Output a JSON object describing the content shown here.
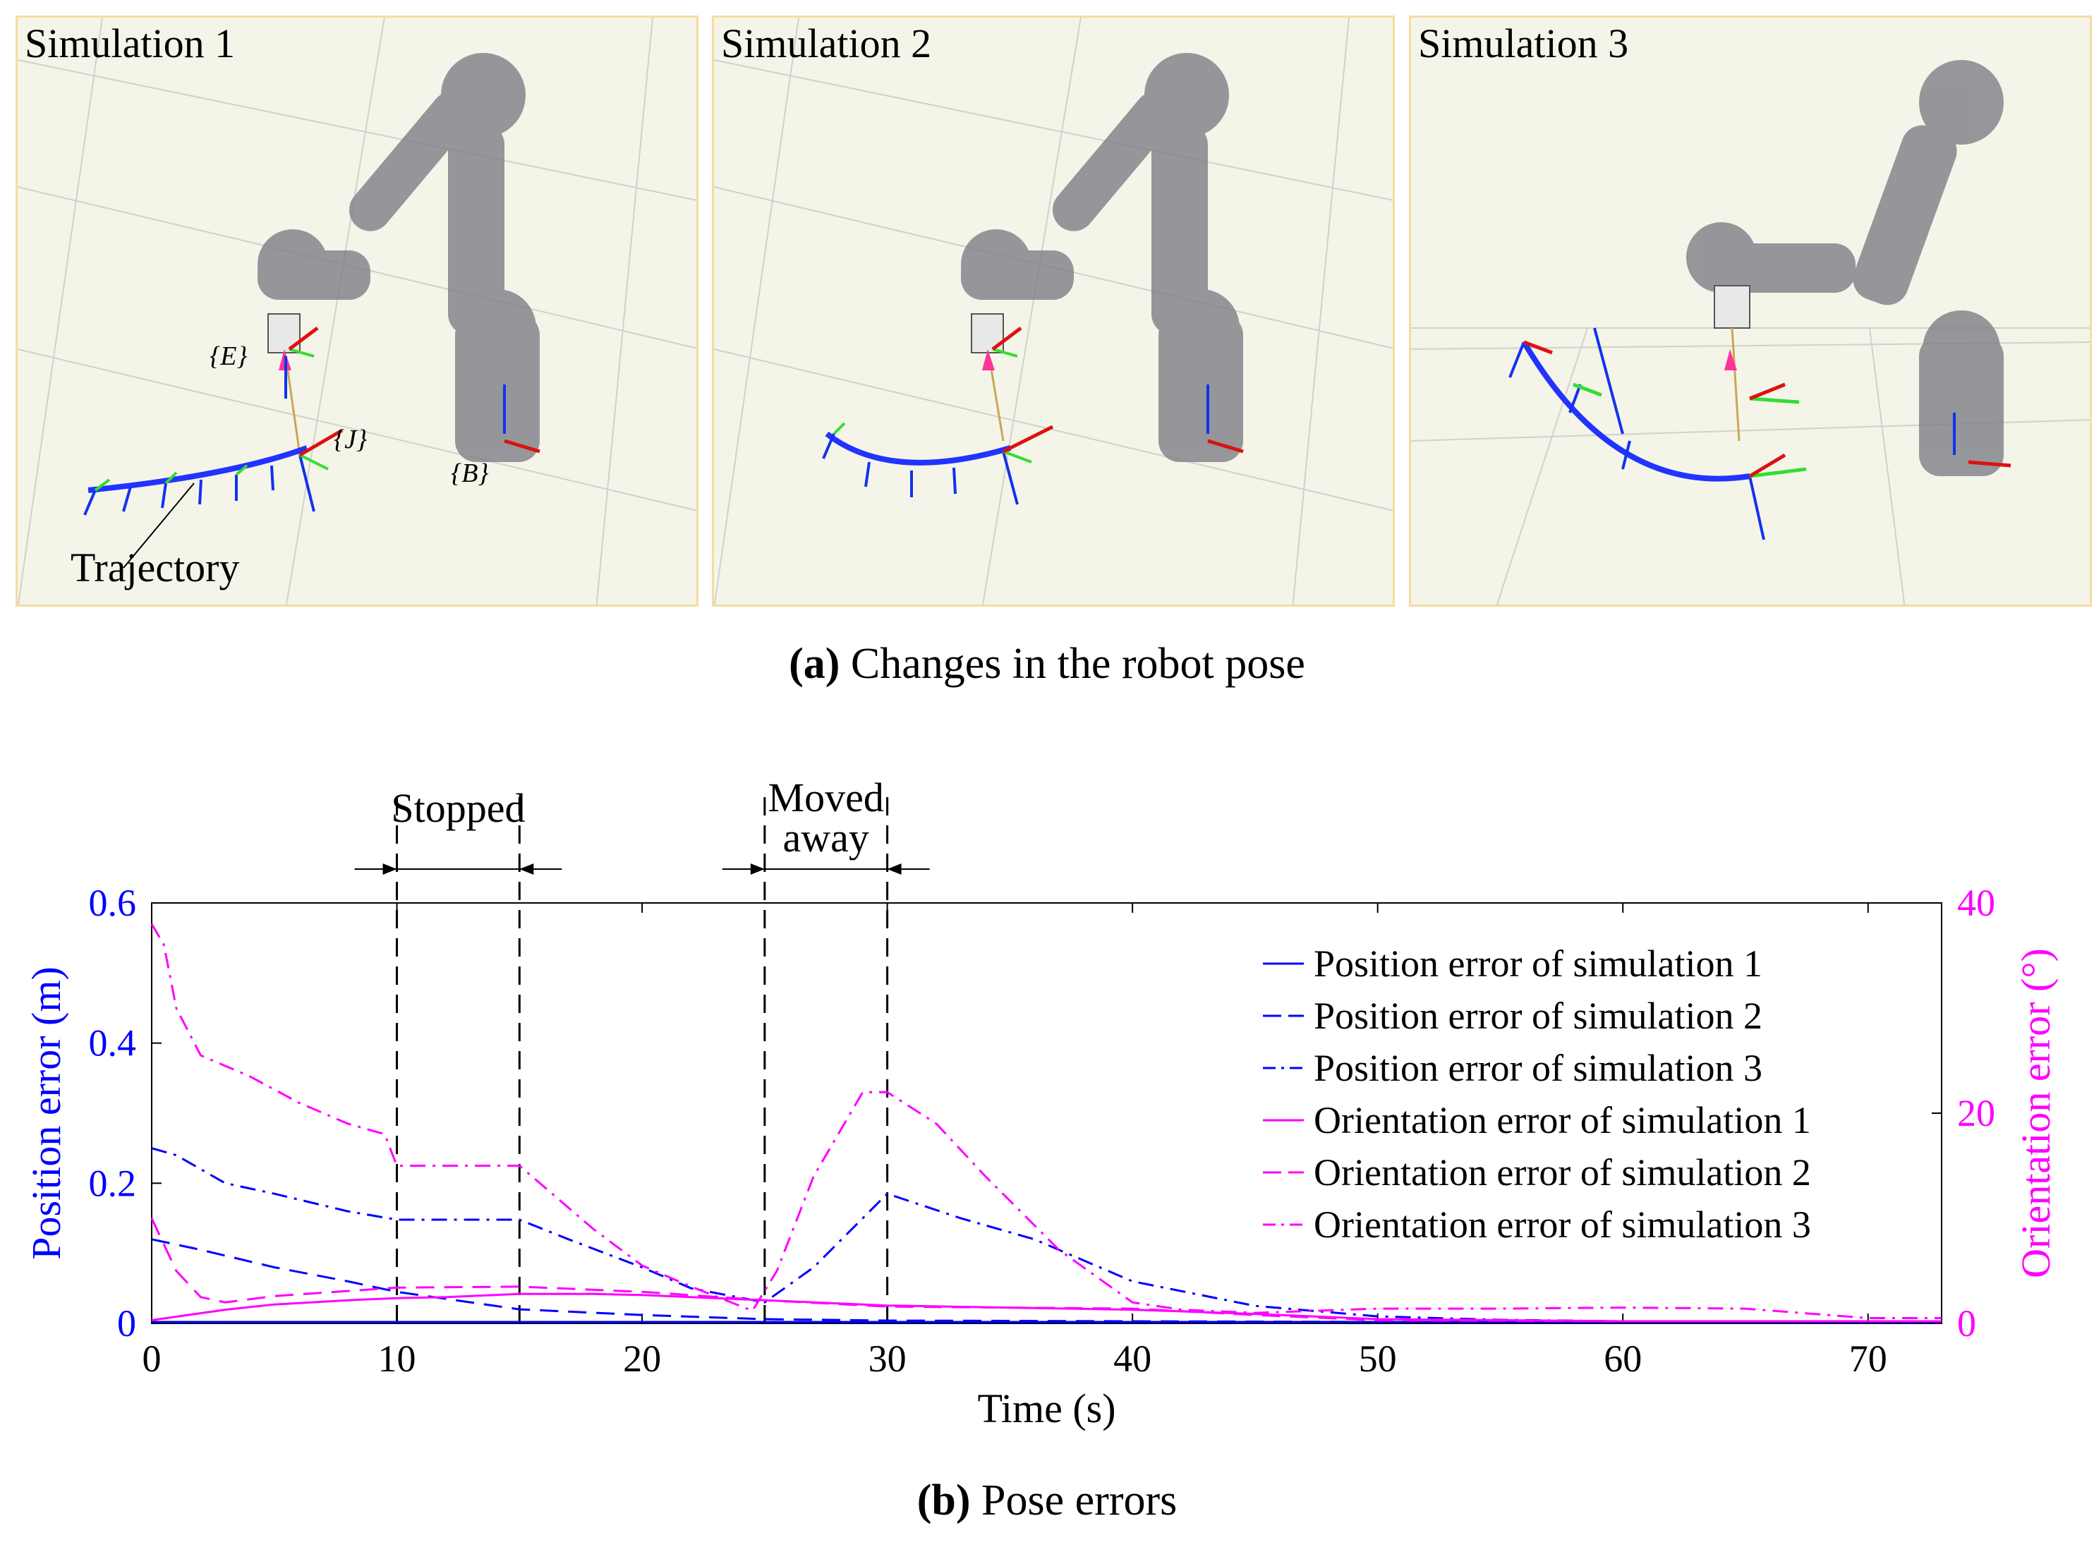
{
  "panels": [
    {
      "title": "Simulation 1"
    },
    {
      "title": "Simulation 2"
    },
    {
      "title": "Simulation 3"
    }
  ],
  "annotations": {
    "frame_e": "{E}",
    "frame_j": "{J}",
    "frame_b": "{B}",
    "trajectory": "Trajectory"
  },
  "caption_a": {
    "letter": "(a)",
    "text": "Changes in the robot pose"
  },
  "caption_b": {
    "letter": "(b)",
    "text": "Pose errors"
  },
  "colors": {
    "position": "#0000ff",
    "orientation": "#ff00ff",
    "panel_border": "#f5dca0",
    "panel_bg": "#f4f4e9"
  },
  "chart_data": {
    "type": "line",
    "xlabel": "Time (s)",
    "ylabel_left": "Position error  (m)",
    "ylabel_right": "Orientation error  (°)",
    "xlim": [
      0,
      73
    ],
    "ylim_left": [
      0,
      0.6
    ],
    "ylim_right": [
      0,
      40
    ],
    "xticks": [
      0,
      10,
      20,
      30,
      40,
      50,
      60,
      70
    ],
    "yticks_left": [
      0,
      0.2,
      0.4,
      0.6
    ],
    "ytick_labels_left": [
      "0",
      "0.2",
      "0.4",
      "0.6"
    ],
    "yticks_right": [
      0,
      20,
      40
    ],
    "ytick_labels_right": [
      "0",
      "20",
      "40"
    ],
    "events": [
      {
        "label": "Stopped",
        "start": 10,
        "end": 15
      },
      {
        "label_line1": "Moved",
        "label_line2": "away",
        "start": 25,
        "end": 30
      }
    ],
    "series": [
      {
        "name": "Position error of simulation 1",
        "axis": "left",
        "style": "solid",
        "x": [
          0,
          10,
          20,
          30,
          40,
          50,
          60,
          73
        ],
        "y": [
          0.002,
          0.002,
          0.002,
          0.002,
          0.002,
          0.002,
          0.002,
          0.002
        ]
      },
      {
        "name": "Position error of simulation 2",
        "axis": "left",
        "style": "dash",
        "x": [
          0,
          2,
          5,
          8,
          10,
          12,
          15,
          20,
          25,
          30,
          40,
          50,
          60,
          73
        ],
        "y": [
          0.12,
          0.105,
          0.08,
          0.06,
          0.045,
          0.035,
          0.02,
          0.012,
          0.006,
          0.004,
          0.003,
          0.002,
          0.002,
          0.002
        ]
      },
      {
        "name": "Position error of simulation 3",
        "axis": "left",
        "style": "dashdot",
        "x": [
          0,
          1,
          3,
          5,
          8,
          10,
          12,
          15,
          17,
          20,
          22,
          25,
          27,
          29,
          30,
          33,
          36,
          40,
          45,
          50,
          55,
          60,
          65,
          73
        ],
        "y": [
          0.25,
          0.24,
          0.2,
          0.185,
          0.16,
          0.148,
          0.148,
          0.148,
          0.12,
          0.08,
          0.05,
          0.03,
          0.08,
          0.15,
          0.185,
          0.15,
          0.12,
          0.06,
          0.025,
          0.01,
          0.005,
          0.003,
          0.002,
          0.002
        ]
      },
      {
        "name": "Orientation error of simulation 1",
        "axis": "right",
        "style": "solid",
        "x": [
          0,
          3,
          5,
          8,
          10,
          12,
          15,
          18,
          20,
          25,
          30,
          40,
          45,
          50,
          60,
          73
        ],
        "y": [
          0.3,
          1.3,
          1.8,
          2.2,
          2.4,
          2.5,
          2.8,
          2.8,
          2.7,
          2.2,
          1.7,
          1.3,
          0.9,
          0.4,
          0.2,
          0.2
        ]
      },
      {
        "name": "Orientation error of simulation 2",
        "axis": "right",
        "style": "dash",
        "x": [
          0,
          1,
          2,
          3,
          5,
          10,
          15,
          20,
          25,
          30,
          40,
          45,
          50,
          60,
          73
        ],
        "y": [
          10,
          5,
          2.5,
          2.0,
          2.6,
          3.4,
          3.5,
          3.0,
          2.2,
          1.6,
          1.4,
          0.8,
          0.3,
          0.2,
          0.2
        ]
      },
      {
        "name": "Orientation error of simulation 3",
        "axis": "right",
        "style": "dashdot",
        "x": [
          0,
          0.5,
          1,
          2,
          4,
          6,
          8,
          9.5,
          10,
          15,
          16,
          18,
          20,
          22,
          24.5,
          25.5,
          27,
          29,
          30,
          32,
          34,
          37,
          40,
          42,
          45,
          50,
          55,
          60,
          65,
          70,
          73
        ],
        "y": [
          38,
          36,
          30,
          25.5,
          23.5,
          21,
          19,
          18,
          15,
          15,
          13,
          9,
          5.5,
          3.5,
          1.2,
          5,
          14,
          22,
          22,
          19,
          14,
          7,
          2,
          1.3,
          1.0,
          1.4,
          1.4,
          1.5,
          1.4,
          0.5,
          0.5
        ]
      }
    ]
  }
}
